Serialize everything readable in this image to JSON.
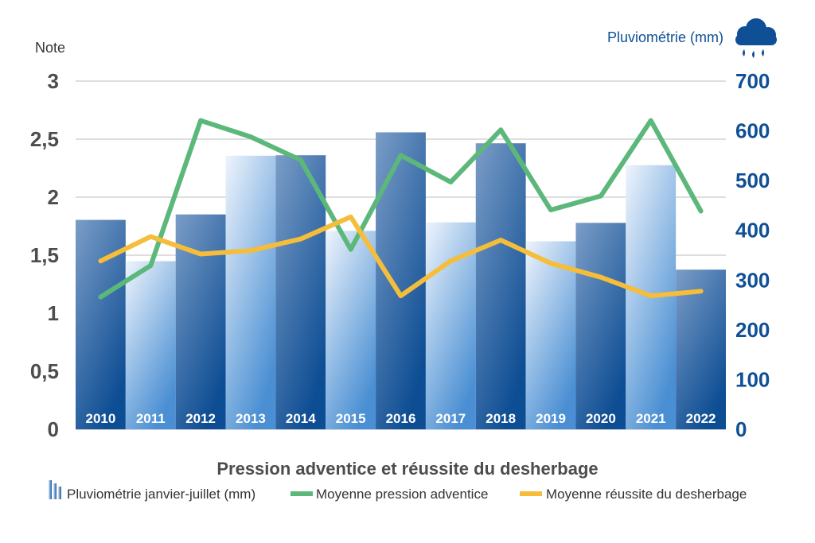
{
  "chart_data": {
    "type": "bar",
    "title": "Pression adventice et réussite du desherbage",
    "ylabel_left": "Note",
    "ylabel_right": "Pluviométrie (mm)",
    "ylim_left": [
      0,
      3
    ],
    "ylim_right": [
      0,
      700
    ],
    "yticks_left": [
      "0",
      "0,5",
      "1",
      "1,5",
      "2",
      "2,5",
      "3"
    ],
    "yticks_right": [
      "0",
      "100",
      "200",
      "300",
      "400",
      "500",
      "600",
      "700"
    ],
    "grid": true,
    "legend_position": "bottom",
    "categories": [
      "2010",
      "2011",
      "2012",
      "2013",
      "2014",
      "2015",
      "2016",
      "2017",
      "2018",
      "2019",
      "2020",
      "2021",
      "2022"
    ],
    "series": [
      {
        "name": "Pluviométrie janvier-juillet (mm)",
        "type": "bar",
        "axis": "right",
        "values": [
          421,
          338,
          432,
          550,
          551,
          399,
          597,
          416,
          575,
          378,
          415,
          531,
          321
        ]
      },
      {
        "name": "Moyenne pression adventice",
        "type": "line",
        "axis": "left",
        "color": "#5cb87a",
        "values": [
          1.14,
          1.41,
          2.66,
          2.52,
          2.32,
          1.55,
          2.36,
          2.13,
          2.58,
          1.89,
          2.01,
          2.66,
          1.88
        ]
      },
      {
        "name": "Moyenne réussite du desherbage",
        "type": "line",
        "axis": "left",
        "color": "#f5bd3a",
        "values": [
          1.45,
          1.66,
          1.51,
          1.54,
          1.64,
          1.83,
          1.15,
          1.45,
          1.63,
          1.43,
          1.31,
          1.15,
          1.19
        ]
      }
    ]
  },
  "colors": {
    "bar_dark": "#0f4f95",
    "bar_light": "#c9dcf2",
    "axis_right": "#0f4f95",
    "axis_left": "#4d4d4d"
  },
  "icons": {
    "rain": "rain-cloud-icon"
  }
}
